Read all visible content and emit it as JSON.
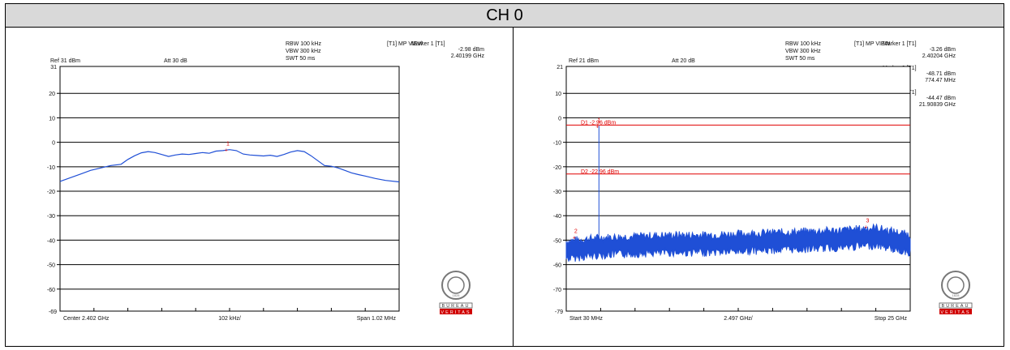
{
  "header": {
    "title": "CH 0"
  },
  "logo": {
    "text": "BUREAU VERITAS",
    "line1": "BUREAU",
    "line2": "VERITAS",
    "seal_year": "1828"
  },
  "chart_data": [
    {
      "type": "line",
      "info": {
        "ref": "Ref 31 dBm",
        "att": "Att  30 dB",
        "rbw": "RBW 100 kHz",
        "vbw": "VBW 300 kHz",
        "swt": "SWT 50 ms",
        "trace": "[T1] MP VIEW",
        "offset": "Offset 11 dB"
      },
      "markers": [
        {
          "title": "Marker 1 [T1]",
          "level": "-2.98 dBm",
          "freq": "2.40199 GHz",
          "label": "1",
          "x": 0.495,
          "y": -2.98
        }
      ],
      "y_axis": {
        "top": 31,
        "bottom": -69,
        "top_label": "31",
        "bottom_label": "-69",
        "ticks": [
          "20",
          "10",
          "0",
          "-10",
          "-20",
          "-30",
          "-40",
          "-50",
          "-60"
        ]
      },
      "ylim": [
        -69,
        31
      ],
      "xlim": [
        0,
        1
      ],
      "x_labels": {
        "left": "Center 2.402 GHz",
        "center": "102 kHz/",
        "right": "Span 1.02 MHz"
      },
      "series": [
        {
          "x": [
            0,
            0.03,
            0.06,
            0.09,
            0.12,
            0.15,
            0.18,
            0.2,
            0.22,
            0.24,
            0.26,
            0.28,
            0.3,
            0.32,
            0.34,
            0.36,
            0.38,
            0.4,
            0.42,
            0.44,
            0.46,
            0.48,
            0.5,
            0.52,
            0.54,
            0.56,
            0.58,
            0.6,
            0.62,
            0.64,
            0.66,
            0.68,
            0.7,
            0.72,
            0.74,
            0.76,
            0.78,
            0.8,
            0.82,
            0.84,
            0.86,
            0.88,
            0.9,
            0.93,
            0.96,
            1.0
          ],
          "y": [
            -16,
            -14.5,
            -13,
            -11.5,
            -10.5,
            -9.5,
            -9,
            -7,
            -5.5,
            -4.3,
            -3.8,
            -4.2,
            -5,
            -5.8,
            -5.2,
            -4.8,
            -5,
            -4.6,
            -4.2,
            -4.5,
            -3.6,
            -3.4,
            -3,
            -3.4,
            -4.8,
            -5.2,
            -5.4,
            -5.6,
            -5.3,
            -5.8,
            -5,
            -4,
            -3.4,
            -3.8,
            -5.5,
            -7.5,
            -9.5,
            -9.8,
            -10.5,
            -11.5,
            -12.5,
            -13.2,
            -13.8,
            -14.8,
            -15.6,
            -16.2
          ]
        }
      ]
    },
    {
      "type": "line",
      "info": {
        "ref": "Ref 21 dBm",
        "att": "Att  20 dB",
        "rbw": "RBW 100 kHz",
        "vbw": "VBW 300 kHz",
        "swt": "SWT 50 ms",
        "trace": "[T1] MP VIEW",
        "offset": "Offset 11 dB"
      },
      "markers": [
        {
          "title": "Marker 1 [T1]",
          "level": "-3.26 dBm",
          "freq": "2.40204 GHz",
          "label": "1",
          "x": 0.095,
          "y": -3.26
        },
        {
          "title": "Marker 2 [T1]",
          "level": "-48.71 dBm",
          "freq": "774.47 MHz",
          "label": "2",
          "x": 0.028,
          "y": -48.71
        },
        {
          "title": "Marker 3 [T1]",
          "level": "-44.47 dBm",
          "freq": "21.90839 GHz",
          "label": "3",
          "x": 0.876,
          "y": -44.47
        }
      ],
      "display_lines": [
        {
          "label": "D1  -2.96 dBm",
          "value": -2.96
        },
        {
          "label": "D2  -22.96 dBm",
          "value": -22.96
        }
      ],
      "y_axis": {
        "top": 21,
        "bottom": -79,
        "top_label": "21",
        "bottom_label": "-79",
        "ticks": [
          "10",
          "0",
          "-10",
          "-20",
          "-30",
          "-40",
          "-50",
          "-60",
          "-70"
        ]
      },
      "ylim": [
        -79,
        21
      ],
      "xlim": [
        0,
        1
      ],
      "x_labels": {
        "left": "Start 30 MHz",
        "center": "2.497 GHz/",
        "right": "Stop 25 GHz"
      },
      "noise_floor": {
        "baseline": [
          [
            0,
            -54
          ],
          [
            0.1,
            -52.5
          ],
          [
            0.2,
            -52
          ],
          [
            0.3,
            -51.5
          ],
          [
            0.4,
            -51.5
          ],
          [
            0.5,
            -51
          ],
          [
            0.6,
            -50.5
          ],
          [
            0.7,
            -50
          ],
          [
            0.8,
            -49.5
          ],
          [
            0.9,
            -48.5
          ],
          [
            1.0,
            -51.5
          ]
        ],
        "amplitude": 3.5
      }
    }
  ]
}
